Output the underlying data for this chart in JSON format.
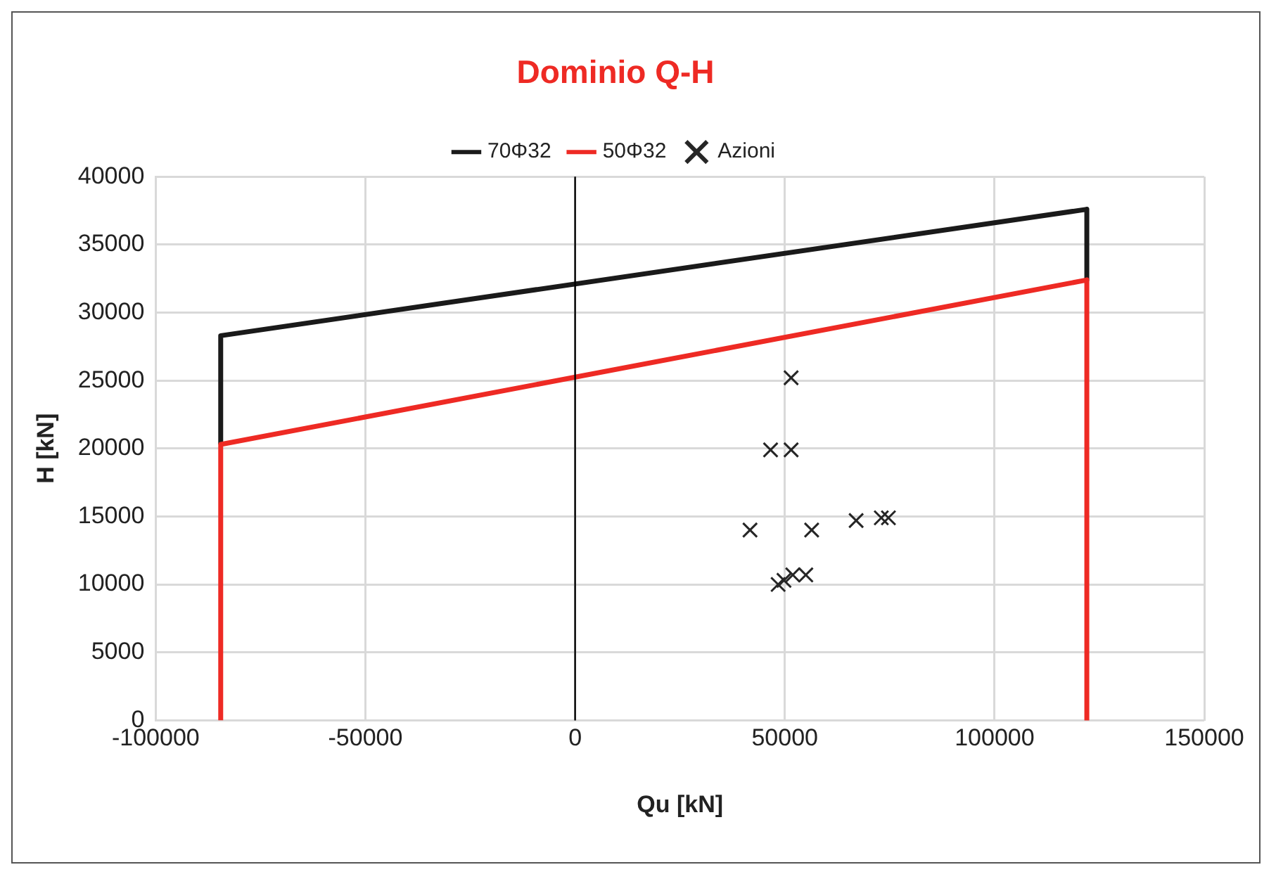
{
  "chart_data": {
    "type": "line",
    "title": "Dominio Q-H",
    "xlabel": "Qu [kN]",
    "ylabel": "H [kN]",
    "xlim": [
      -100000,
      150000
    ],
    "xticks": [
      -100000,
      -50000,
      0,
      50000,
      100000,
      150000
    ],
    "ylim": [
      0,
      40000
    ],
    "yticks": [
      0,
      5000,
      10000,
      15000,
      20000,
      25000,
      30000,
      35000,
      40000
    ],
    "grid": true,
    "legend": "top",
    "ref_lines": [
      {
        "axis": "x",
        "value": 0,
        "color": "#000000"
      }
    ],
    "series": [
      {
        "name": "70Φ32",
        "type": "line",
        "color": "#1a1a1a",
        "x": [
          -84500,
          -84500,
          122000,
          122000
        ],
        "values": [
          20300,
          28300,
          37600,
          32400
        ],
        "marker": "none"
      },
      {
        "name": "50Φ32",
        "type": "line",
        "color": "#ee2a24",
        "x": [
          -84500,
          -84500,
          122000,
          122000
        ],
        "values": [
          0,
          20300,
          32400,
          0
        ],
        "marker": "none"
      },
      {
        "name": "Azioni",
        "type": "scatter",
        "color": "#262626",
        "x": [
          51500,
          46600,
          51500,
          41700,
          56400,
          67000,
          73000,
          74700,
          48400,
          49800,
          51900,
          55000
        ],
        "values": [
          25200,
          19900,
          19900,
          14000,
          14000,
          14700,
          14900,
          14900,
          10000,
          10300,
          10700,
          10700
        ],
        "marker": "cross"
      }
    ]
  }
}
